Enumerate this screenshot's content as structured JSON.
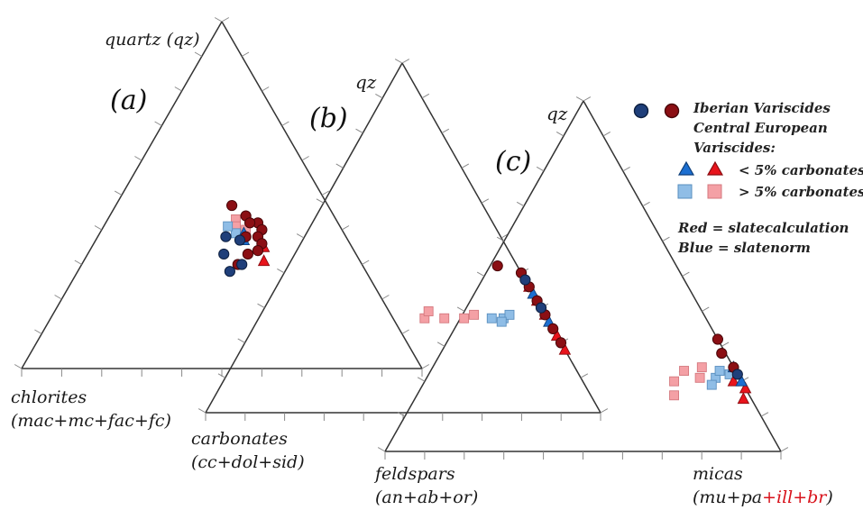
{
  "chart_data": {
    "type": "ternary-scatter",
    "panels": [
      {
        "panel_label": "(a)",
        "apex_labels": {
          "top": "quartz (qz)",
          "left": [
            "chlorites",
            "(mac+mc+fac+fc)"
          ],
          "right": [
            "carbonates",
            "(cc+dol+sid)"
          ]
        },
        "note": "approx. ternary fractions [top, left, right]",
        "points": [
          {
            "group": "iberian",
            "style": "slatecalculation",
            "c": [
              0.47,
              0.24,
              0.29
            ]
          },
          {
            "group": "iberian",
            "style": "slatecalculation",
            "c": [
              0.44,
              0.22,
              0.34
            ]
          },
          {
            "group": "iberian",
            "style": "slatecalculation",
            "c": [
              0.42,
              0.2,
              0.38
            ]
          },
          {
            "group": "iberian",
            "style": "slatecalculation",
            "c": [
              0.4,
              0.2,
              0.4
            ]
          },
          {
            "group": "iberian",
            "style": "slatecalculation",
            "c": [
              0.38,
              0.22,
              0.4
            ]
          },
          {
            "group": "iberian",
            "style": "slatecalculation",
            "c": [
              0.36,
              0.22,
              0.42
            ]
          },
          {
            "group": "iberian",
            "style": "slatecalculation",
            "c": [
              0.34,
              0.24,
              0.42
            ]
          },
          {
            "group": "iberian",
            "style": "slatecalculation",
            "c": [
              0.42,
              0.22,
              0.36
            ]
          },
          {
            "group": "iberian",
            "style": "slatecalculation",
            "c": [
              0.38,
              0.25,
              0.37
            ]
          },
          {
            "group": "iberian",
            "style": "slatecalculation",
            "c": [
              0.33,
              0.27,
              0.4
            ]
          },
          {
            "group": "iberian",
            "style": "slatecalculation",
            "c": [
              0.3,
              0.31,
              0.39
            ]
          },
          {
            "group": "iberian",
            "style": "slatenorm",
            "c": [
              0.38,
              0.3,
              0.32
            ]
          },
          {
            "group": "iberian",
            "style": "slatenorm",
            "c": [
              0.33,
              0.33,
              0.34
            ]
          },
          {
            "group": "iberian",
            "style": "slatenorm",
            "c": [
              0.28,
              0.34,
              0.38
            ]
          },
          {
            "group": "iberian",
            "style": "slatenorm",
            "c": [
              0.3,
              0.3,
              0.4
            ]
          },
          {
            "group": "iberian",
            "style": "slatenorm",
            "c": [
              0.37,
              0.27,
              0.36
            ]
          },
          {
            "group": "central_lt5",
            "style": "slatecalculation",
            "c": [
              0.35,
              0.22,
              0.43
            ]
          },
          {
            "group": "central_lt5",
            "style": "slatecalculation",
            "c": [
              0.31,
              0.24,
              0.45
            ]
          },
          {
            "group": "central_lt5",
            "style": "slatenorm",
            "c": [
              0.39,
              0.25,
              0.36
            ]
          },
          {
            "group": "central_lt5",
            "style": "slatenorm",
            "c": [
              0.37,
              0.26,
              0.37
            ]
          },
          {
            "group": "central_gt5",
            "style": "slatecalculation",
            "c": [
              0.43,
              0.25,
              0.32
            ]
          },
          {
            "group": "central_gt5",
            "style": "slatecalculation",
            "c": [
              0.41,
              0.26,
              0.33
            ]
          },
          {
            "group": "central_gt5",
            "style": "slatecalculation",
            "c": [
              0.4,
              0.24,
              0.36
            ]
          },
          {
            "group": "central_gt5",
            "style": "slatenorm",
            "c": [
              0.39,
              0.27,
              0.34
            ]
          },
          {
            "group": "central_gt5",
            "style": "slatenorm",
            "c": [
              0.41,
              0.28,
              0.31
            ]
          }
        ]
      },
      {
        "panel_label": "(b)",
        "apex_labels": {
          "top": "qz",
          "left": [
            "carbonates",
            "(cc+dol+sid)"
          ],
          "right": [
            "feldspars",
            "(an+ab+or)"
          ]
        },
        "note": "approx. ternary fractions [top, left, right]",
        "points": [
          {
            "group": "iberian",
            "style": "slatecalculation",
            "c": [
              0.4,
              0.0,
              0.6
            ]
          },
          {
            "group": "iberian",
            "style": "slatecalculation",
            "c": [
              0.36,
              0.0,
              0.64
            ]
          },
          {
            "group": "iberian",
            "style": "slatecalculation",
            "c": [
              0.32,
              0.0,
              0.68
            ]
          },
          {
            "group": "iberian",
            "style": "slatecalculation",
            "c": [
              0.28,
              0.0,
              0.72
            ]
          },
          {
            "group": "iberian",
            "style": "slatecalculation",
            "c": [
              0.24,
              0.0,
              0.76
            ]
          },
          {
            "group": "iberian",
            "style": "slatecalculation",
            "c": [
              0.2,
              0.0,
              0.8
            ]
          },
          {
            "group": "iberian",
            "style": "slatecalculation",
            "c": [
              0.42,
              0.05,
              0.53
            ]
          },
          {
            "group": "iberian",
            "style": "slatenorm",
            "c": [
              0.38,
              0.0,
              0.62
            ]
          },
          {
            "group": "iberian",
            "style": "slatenorm",
            "c": [
              0.3,
              0.0,
              0.7
            ]
          },
          {
            "group": "central_lt5",
            "style": "slatecalculation",
            "c": [
              0.36,
              0.0,
              0.64
            ]
          },
          {
            "group": "central_lt5",
            "style": "slatecalculation",
            "c": [
              0.32,
              0.0,
              0.68
            ]
          },
          {
            "group": "central_lt5",
            "style": "slatecalculation",
            "c": [
              0.28,
              0.0,
              0.72
            ]
          },
          {
            "group": "central_lt5",
            "style": "slatecalculation",
            "c": [
              0.22,
              0.0,
              0.78
            ]
          },
          {
            "group": "central_lt5",
            "style": "slatecalculation",
            "c": [
              0.18,
              0.0,
              0.82
            ]
          },
          {
            "group": "central_lt5",
            "style": "slatenorm",
            "c": [
              0.34,
              0.0,
              0.66
            ]
          },
          {
            "group": "central_lt5",
            "style": "slatenorm",
            "c": [
              0.26,
              0.0,
              0.74
            ]
          },
          {
            "group": "central_gt5",
            "style": "slatecalculation",
            "c": [
              0.27,
              0.31,
              0.42
            ]
          },
          {
            "group": "central_gt5",
            "style": "slatecalculation",
            "c": [
              0.27,
              0.26,
              0.47
            ]
          },
          {
            "group": "central_gt5",
            "style": "slatecalculation",
            "c": [
              0.27,
              0.21,
              0.52
            ]
          },
          {
            "group": "central_gt5",
            "style": "slatecalculation",
            "c": [
              0.29,
              0.29,
              0.42
            ]
          },
          {
            "group": "central_gt5",
            "style": "slatecalculation",
            "c": [
              0.28,
              0.18,
              0.54
            ]
          },
          {
            "group": "central_gt5",
            "style": "slatenorm",
            "c": [
              0.27,
              0.14,
              0.59
            ]
          },
          {
            "group": "central_gt5",
            "style": "slatenorm",
            "c": [
              0.27,
              0.11,
              0.62
            ]
          },
          {
            "group": "central_gt5",
            "style": "slatenorm",
            "c": [
              0.28,
              0.09,
              0.63
            ]
          },
          {
            "group": "central_gt5",
            "style": "slatenorm",
            "c": [
              0.26,
              0.12,
              0.62
            ]
          }
        ]
      },
      {
        "panel_label": "(c)",
        "apex_labels": {
          "top": "qz",
          "left": [
            "feldspars",
            "(an+ab+or)"
          ],
          "right_parts": [
            "(mu+pa",
            "+ill+br",
            ")"
          ],
          "right": [
            "micas"
          ]
        },
        "note": "approx. ternary fractions [top, left, right]",
        "points": [
          {
            "group": "iberian",
            "style": "slatecalculation",
            "c": [
              0.32,
              0.0,
              0.68
            ]
          },
          {
            "group": "iberian",
            "style": "slatecalculation",
            "c": [
              0.28,
              0.01,
              0.71
            ]
          },
          {
            "group": "iberian",
            "style": "slatecalculation",
            "c": [
              0.24,
              0.0,
              0.76
            ]
          },
          {
            "group": "iberian",
            "style": "slatenorm",
            "c": [
              0.22,
              0.0,
              0.78
            ]
          },
          {
            "group": "central_lt5",
            "style": "slatecalculation",
            "c": [
              0.2,
              0.02,
              0.78
            ]
          },
          {
            "group": "central_lt5",
            "style": "slatecalculation",
            "c": [
              0.15,
              0.02,
              0.83
            ]
          },
          {
            "group": "central_lt5",
            "style": "slatecalculation",
            "c": [
              0.18,
              0.0,
              0.82
            ]
          },
          {
            "group": "central_lt5",
            "style": "slatenorm",
            "c": [
              0.24,
              0.0,
              0.76
            ]
          },
          {
            "group": "central_lt5",
            "style": "slatenorm",
            "c": [
              0.2,
              0.0,
              0.8
            ]
          },
          {
            "group": "central_gt5",
            "style": "slatecalculation",
            "c": [
              0.2,
              0.17,
              0.63
            ]
          },
          {
            "group": "central_gt5",
            "style": "slatecalculation",
            "c": [
              0.23,
              0.13,
              0.64
            ]
          },
          {
            "group": "central_gt5",
            "style": "slatecalculation",
            "c": [
              0.24,
              0.08,
              0.68
            ]
          },
          {
            "group": "central_gt5",
            "style": "slatecalculation",
            "c": [
              0.21,
              0.1,
              0.69
            ]
          },
          {
            "group": "central_gt5",
            "style": "slatecalculation",
            "c": [
              0.16,
              0.19,
              0.65
            ]
          },
          {
            "group": "central_gt5",
            "style": "slatenorm",
            "c": [
              0.21,
              0.06,
              0.73
            ]
          },
          {
            "group": "central_gt5",
            "style": "slatenorm",
            "c": [
              0.23,
              0.04,
              0.73
            ]
          },
          {
            "group": "central_gt5",
            "style": "slatenorm",
            "c": [
              0.19,
              0.08,
              0.73
            ]
          },
          {
            "group": "central_gt5",
            "style": "slatenorm",
            "c": [
              0.22,
              0.02,
              0.76
            ]
          }
        ]
      }
    ],
    "legend": {
      "placement": "top-right",
      "entries": [
        {
          "group": "iberian",
          "label": "Iberian Variscides"
        },
        {
          "group": "central_header",
          "lines": [
            "Central European",
            "Variscides:"
          ]
        },
        {
          "group": "central_lt5",
          "label": "< 5% carbonates"
        },
        {
          "group": "central_gt5",
          "label": "> 5% carbonates"
        }
      ],
      "color_key": [
        {
          "word": "Red",
          "text": " = slatecalculation"
        },
        {
          "word": "Blue",
          "text": " = slatenorm"
        }
      ]
    },
    "colors": {
      "iberian_slatecalculation": "#8b0f14",
      "iberian_slatenorm": "#1f3f7a",
      "central_lt5_slatecalculation": "#e8141c",
      "central_lt5_slatenorm": "#1c6fd1",
      "central_gt5_slatecalculation": "#f4a0a5",
      "central_gt5_slatenorm": "#8fbde6",
      "axis": "#333333",
      "red_text": "#d8121b"
    }
  }
}
